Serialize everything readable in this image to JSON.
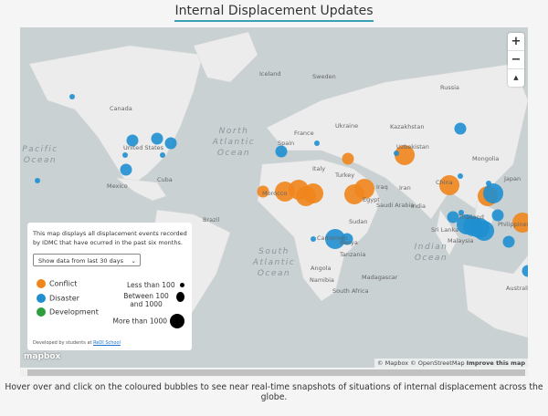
{
  "page": {
    "title": "Internal Displacement Updates",
    "caption": "Hover over and click on the coloured bubbles to see near real-time snapshots of situations of internal displacement across the globe."
  },
  "map": {
    "zoom_in": "+",
    "zoom_out": "−",
    "compass": "▲",
    "attribution": {
      "mapbox": "© Mapbox",
      "osm": "© OpenStreetMap",
      "improve": "Improve this map"
    },
    "logo": "mapbox",
    "oceans": [
      "North Atlantic Ocean",
      "South Atlantic Ocean",
      "Indian Ocean",
      "Pacific Ocean"
    ],
    "labels": [
      "Iceland",
      "Sweden",
      "Russia",
      "Canada",
      "United States",
      "Mexico",
      "Cuba",
      "Brazil",
      "Spain",
      "France",
      "Ukraine",
      "Italy",
      "Turkey",
      "Kazakhstan",
      "Uzbekistan",
      "Mongolia",
      "China",
      "Japan",
      "Iran",
      "Iraq",
      "Egypt",
      "Saudi Arabia",
      "India",
      "Sri Lanka",
      "Morocco",
      "Sudan",
      "Cameroon",
      "Kenya",
      "Tanzania",
      "Angola",
      "Namibia",
      "Madagascar",
      "South Africa",
      "Malaysia",
      "Thailand",
      "Philippines",
      "Australia"
    ],
    "events": [
      {
        "type": "disaster",
        "size": "small"
      },
      {
        "type": "disaster",
        "size": "medium"
      },
      {
        "type": "disaster",
        "size": "medium"
      },
      {
        "type": "disaster",
        "size": "medium"
      },
      {
        "type": "disaster",
        "size": "small"
      },
      {
        "type": "disaster",
        "size": "small"
      },
      {
        "type": "disaster",
        "size": "medium"
      },
      {
        "type": "disaster",
        "size": "small"
      },
      {
        "type": "disaster",
        "size": "medium"
      },
      {
        "type": "disaster",
        "size": "small"
      },
      {
        "type": "conflict",
        "size": "medium"
      },
      {
        "type": "conflict",
        "size": "medium"
      },
      {
        "type": "conflict",
        "size": "large"
      },
      {
        "type": "conflict",
        "size": "large"
      },
      {
        "type": "conflict",
        "size": "large"
      },
      {
        "type": "conflict",
        "size": "large"
      },
      {
        "type": "conflict",
        "size": "large"
      },
      {
        "type": "conflict",
        "size": "large"
      },
      {
        "type": "disaster",
        "size": "large"
      },
      {
        "type": "disaster",
        "size": "medium"
      },
      {
        "type": "disaster",
        "size": "small"
      },
      {
        "type": "conflict",
        "size": "large"
      },
      {
        "type": "disaster",
        "size": "small"
      },
      {
        "type": "disaster",
        "size": "medium"
      },
      {
        "type": "conflict",
        "size": "large"
      },
      {
        "type": "disaster",
        "size": "small"
      },
      {
        "type": "disaster",
        "size": "small"
      },
      {
        "type": "conflict",
        "size": "large"
      },
      {
        "type": "disaster",
        "size": "large"
      },
      {
        "type": "disaster",
        "size": "medium"
      },
      {
        "type": "disaster",
        "size": "medium"
      },
      {
        "type": "disaster",
        "size": "small"
      },
      {
        "type": "disaster",
        "size": "large"
      },
      {
        "type": "disaster",
        "size": "large"
      },
      {
        "type": "disaster",
        "size": "large"
      },
      {
        "type": "disaster",
        "size": "large"
      },
      {
        "type": "disaster",
        "size": "medium"
      },
      {
        "type": "conflict",
        "size": "large"
      },
      {
        "type": "disaster",
        "size": "medium"
      }
    ]
  },
  "legend": {
    "intro": "This map displays all displacement events recorded by IDMC that have ocurred in the past six months.",
    "select": "Show data from last 30 days",
    "categories": [
      {
        "label": "Conflict",
        "color": "#f0851c"
      },
      {
        "label": "Disaster",
        "color": "#1f8fd0"
      },
      {
        "label": "Development",
        "color": "#2e9e3e"
      }
    ],
    "sizes": [
      "Less than 100",
      "Between 100 and 1000",
      "More than 1000"
    ],
    "credit_prefix": "Developed by students at ",
    "credit_link": "ReDI School"
  }
}
